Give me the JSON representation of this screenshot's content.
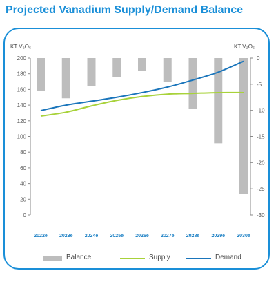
{
  "title": "Projected Vanadium Supply/Demand Balance",
  "chart_data": {
    "type": "bar+line",
    "categories": [
      "2022e",
      "2023e",
      "2024e",
      "2025e",
      "2026e",
      "2027e",
      "2028e",
      "2029e",
      "2030e"
    ],
    "left_axis": {
      "label": "KT V₂O₅",
      "min": 0,
      "max": 200,
      "ticks": [
        0,
        20,
        40,
        60,
        80,
        100,
        120,
        140,
        160,
        180,
        200
      ]
    },
    "right_axis": {
      "label": "KT V₂O₅",
      "min": -30,
      "max": 0,
      "ticks": [
        0,
        -5,
        -10,
        -15,
        -20,
        -25,
        -30
      ]
    },
    "series": [
      {
        "name": "Balance",
        "type": "bar",
        "axis": "right",
        "color": "#bdbdbd",
        "values": [
          -6.3,
          -7.7,
          -5.3,
          -3.7,
          -2.5,
          -4.5,
          -9.7,
          -16.3,
          -26.0
        ]
      },
      {
        "name": "Supply",
        "type": "line",
        "axis": "left",
        "color": "#a8d23a",
        "values": [
          126,
          131,
          139,
          146,
          151,
          154,
          155,
          156,
          156
        ]
      },
      {
        "name": "Demand",
        "type": "line",
        "axis": "left",
        "color": "#1a75bb",
        "values": [
          133,
          140,
          145,
          150,
          156,
          163,
          172,
          182,
          196
        ]
      }
    ],
    "legend": [
      "Balance",
      "Supply",
      "Demand"
    ],
    "grid": false,
    "legend_position": "bottom"
  }
}
